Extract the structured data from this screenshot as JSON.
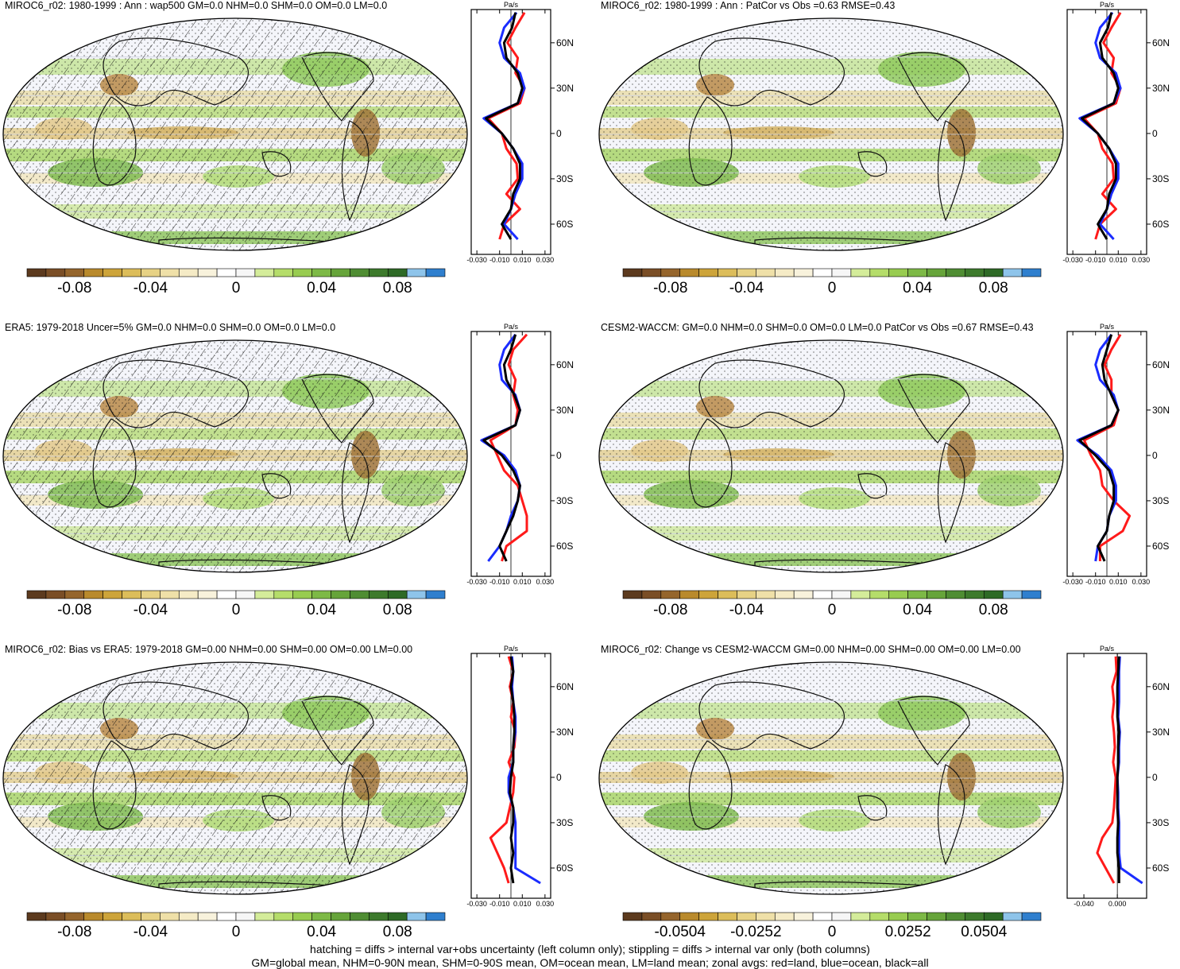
{
  "panels": [
    {
      "title": "MIROC6_r02: 1980-1999 : Ann : wap500 GM=0.0 NHM=0.0 SHM=0.0 OM=0.0 LM=0.0",
      "zonal_unit": "Pa/s",
      "zonal_xticks": [
        "-0.030",
        "-0.010",
        "0.010",
        "0.030"
      ],
      "lat_ticks": [
        "60N",
        "30N",
        "0",
        "30S",
        "60S"
      ],
      "colorbar_labels": [
        "-0.08",
        "-0.04",
        "0",
        "0.04",
        "0.08"
      ],
      "hatching": true
    },
    {
      "title": "MIROC6_r02: 1980-1999 : Ann : PatCor vs Obs =0.63 RMSE=0.43",
      "zonal_unit": "Pa/s",
      "zonal_xticks": [
        "-0.030",
        "-0.010",
        "0.010",
        "0.030"
      ],
      "lat_ticks": [
        "60N",
        "30N",
        "0",
        "30S",
        "60S"
      ],
      "colorbar_labels": [
        "-0.08",
        "-0.04",
        "0",
        "0.04",
        "0.08"
      ],
      "hatching": false
    },
    {
      "title": "ERA5: 1979-2018 Uncer=5% GM=0.0 NHM=0.0 SHM=0.0 OM=0.0 LM=0.0",
      "zonal_unit": "Pa/s",
      "zonal_xticks": [
        "-0.030",
        "-0.010",
        "0.010",
        "0.030"
      ],
      "lat_ticks": [
        "60N",
        "30N",
        "0",
        "30S",
        "60S"
      ],
      "colorbar_labels": [
        "-0.08",
        "-0.04",
        "0",
        "0.04",
        "0.08"
      ],
      "hatching": true
    },
    {
      "title": "CESM2-WACCM: GM=0.0 NHM=0.0 SHM=0.0 OM=0.0 LM=0.0 PatCor vs Obs =0.67 RMSE=0.43",
      "zonal_unit": "Pa/s",
      "zonal_xticks": [
        "-0.030",
        "-0.010",
        "0.010",
        "0.030"
      ],
      "lat_ticks": [
        "60N",
        "30N",
        "0",
        "30S",
        "60S"
      ],
      "colorbar_labels": [
        "-0.08",
        "-0.04",
        "0",
        "0.04",
        "0.08"
      ],
      "hatching": false
    },
    {
      "title": "MIROC6_r02: Bias vs ERA5: 1979-2018 GM=0.00 NHM=0.00 SHM=0.00 OM=0.00 LM=0.00",
      "zonal_unit": "Pa/s",
      "zonal_xticks": [
        "-0.030",
        "-0.010",
        "0.010",
        "0.030"
      ],
      "lat_ticks": [
        "60N",
        "30N",
        "0",
        "30S",
        "60S"
      ],
      "colorbar_labels": [
        "-0.08",
        "-0.04",
        "0",
        "0.04",
        "0.08"
      ],
      "hatching": true
    },
    {
      "title": "MIROC6_r02: Change vs CESM2-WACCM GM=0.00 NHM=0.00 SHM=0.00 OM=0.00 LM=0.00",
      "zonal_unit": "Pa/s",
      "zonal_xticks": [
        "-0.040",
        "0.000"
      ],
      "lat_ticks": [
        "60N",
        "30N",
        "0",
        "30S",
        "60S"
      ],
      "colorbar_labels": [
        "-0.0504",
        "-0.0252",
        "0",
        "0.0252",
        "0.0504"
      ],
      "hatching": false
    }
  ],
  "colorbar_colors": [
    "#5c3a1e",
    "#7a4e26",
    "#95652c",
    "#b98a2c",
    "#cda43a",
    "#dcbd5a",
    "#e7d285",
    "#efe0a8",
    "#f5ebc6",
    "#f8f2dc",
    "#ffffff",
    "#f6f6f6",
    "#d4ec9a",
    "#b5dd6a",
    "#98cc50",
    "#7db946",
    "#66a43a",
    "#4f8d33",
    "#3d7a2c",
    "#2e6a26",
    "#8ec4ea",
    "#2f7fce"
  ],
  "footer_lines": [
    "hatching = diffs > internal var+obs uncertainty (left column only); stippling = diffs > internal var only (both columns)",
    "GM=global mean, NHM=0-90N mean, SHM=0-90S mean, OM=ocean mean, LM=land mean; zonal avgs: red=land, blue=ocean, black=all"
  ],
  "chart_data": [
    {
      "type": "heatmap",
      "title": "MIROC6_r02: 1980-1999 : Ann : wap500 GM=0.0 NHM=0.0 SHM=0.0 OM=0.0 LM=0.0",
      "colorbar_range": [
        -0.1,
        0.1
      ],
      "zonal_mean": {
        "lat": [
          80,
          70,
          60,
          50,
          40,
          30,
          20,
          10,
          0,
          -10,
          -20,
          -30,
          -40,
          -50,
          -60,
          -70
        ],
        "series": [
          {
            "name": "red=land",
            "values": [
              0.012,
              0.004,
              -0.003,
              0.006,
              0.004,
              0.012,
              0.008,
              -0.02,
              -0.008,
              -0.004,
              0.005,
              0.006,
              -0.004,
              0.008,
              -0.006,
              -0.01
            ]
          },
          {
            "name": "blue=ocean",
            "values": [
              0.005,
              -0.006,
              -0.01,
              -0.006,
              0.008,
              0.012,
              0.006,
              -0.024,
              -0.008,
              0.002,
              0.01,
              0.01,
              0.004,
              0,
              -0.006,
              0.006
            ]
          },
          {
            "name": "black=all",
            "values": [
              0.004,
              0.001,
              -0.006,
              -0.004,
              0.006,
              0.01,
              0.006,
              -0.022,
              -0.008,
              0.002,
              0.008,
              0.008,
              0.002,
              0,
              -0.008,
              0
            ]
          }
        ]
      }
    },
    {
      "type": "heatmap",
      "title": "MIROC6_r02: 1980-1999 : Ann : PatCor vs Obs =0.63 RMSE=0.43",
      "colorbar_range": [
        -0.1,
        0.1
      ],
      "zonal_mean": {
        "lat": [
          80,
          70,
          60,
          50,
          40,
          30,
          20,
          10,
          0,
          -10,
          -20,
          -30,
          -40,
          -50,
          -60,
          -70
        ],
        "series": [
          {
            "name": "red=land",
            "values": [
              0.012,
              0.004,
              -0.003,
              0.006,
              0.004,
              0.012,
              0.008,
              -0.02,
              -0.008,
              -0.004,
              0.005,
              0.006,
              -0.004,
              0.008,
              -0.006,
              -0.01
            ]
          },
          {
            "name": "blue=ocean",
            "values": [
              0.005,
              -0.006,
              -0.01,
              -0.006,
              0.008,
              0.012,
              0.006,
              -0.024,
              -0.008,
              0.002,
              0.01,
              0.01,
              0.004,
              0,
              -0.006,
              0.006
            ]
          },
          {
            "name": "black=all",
            "values": [
              0.004,
              0.001,
              -0.006,
              -0.004,
              0.006,
              0.01,
              0.006,
              -0.022,
              -0.008,
              0.002,
              0.008,
              0.008,
              0.002,
              0,
              -0.008,
              0
            ]
          }
        ]
      }
    },
    {
      "type": "heatmap",
      "title": "ERA5: 1979-2018 Uncer=5% GM=0.0 NHM=0.0 SHM=0.0 OM=0.0 LM=0.0",
      "colorbar_range": [
        -0.1,
        0.1
      ],
      "zonal_mean": {
        "lat": [
          80,
          70,
          60,
          50,
          40,
          30,
          20,
          10,
          0,
          -10,
          -20,
          -30,
          -40,
          -50,
          -60,
          -70
        ],
        "series": [
          {
            "name": "red=land",
            "values": [
              0.014,
              0.002,
              -0.002,
              0.004,
              0.002,
              0.006,
              0.004,
              -0.018,
              -0.012,
              -0.006,
              0.006,
              0.01,
              0.014,
              0.014,
              -0.004,
              -0.008
            ]
          },
          {
            "name": "blue=ocean",
            "values": [
              0.004,
              -0.006,
              -0.01,
              -0.008,
              0.004,
              0.008,
              0.004,
              -0.026,
              -0.006,
              0.004,
              0.008,
              0.006,
              0,
              -0.004,
              -0.01,
              -0.02
            ]
          },
          {
            "name": "black=all",
            "values": [
              0.004,
              0,
              -0.006,
              -0.004,
              0.003,
              0.008,
              0.004,
              -0.024,
              -0.008,
              0.002,
              0.008,
              0.006,
              0.002,
              -0.004,
              -0.01,
              -0.004
            ]
          }
        ]
      }
    },
    {
      "type": "heatmap",
      "title": "CESM2-WACCM: GM=0.0 NHM=0.0 SHM=0.0 OM=0.0 LM=0.0 PatCor vs Obs =0.67 RMSE=0.43",
      "colorbar_range": [
        -0.1,
        0.1
      ],
      "zonal_mean": {
        "lat": [
          80,
          70,
          60,
          50,
          40,
          30,
          20,
          10,
          0,
          -10,
          -20,
          -30,
          -40,
          -50,
          -60,
          -70
        ],
        "series": [
          {
            "name": "red=land",
            "values": [
              0.012,
              0.004,
              -0.002,
              0.004,
              0.004,
              0.01,
              0.006,
              -0.02,
              -0.014,
              -0.006,
              -0.004,
              0.006,
              0.02,
              0.014,
              -0.006,
              -0.006
            ]
          },
          {
            "name": "blue=ocean",
            "values": [
              0.004,
              -0.006,
              -0.01,
              -0.006,
              0.006,
              0.01,
              0.004,
              -0.026,
              -0.008,
              0.004,
              0.008,
              0.008,
              0.002,
              0,
              -0.008,
              -0.01
            ]
          },
          {
            "name": "black=all",
            "values": [
              0.004,
              0,
              -0.004,
              -0.002,
              0.004,
              0.01,
              0.004,
              -0.024,
              -0.01,
              0.002,
              0.006,
              0.006,
              0.002,
              0,
              -0.008,
              -0.002
            ]
          }
        ]
      }
    },
    {
      "type": "heatmap",
      "title": "MIROC6_r02: Bias vs ERA5: 1979-2018 GM=0.00 NHM=0.00 SHM=0.00 OM=0.00 LM=0.00",
      "colorbar_range": [
        -0.1,
        0.1
      ],
      "zonal_mean": {
        "lat": [
          80,
          70,
          60,
          50,
          40,
          30,
          20,
          10,
          0,
          -10,
          -20,
          -30,
          -40,
          -50,
          -60,
          -70
        ],
        "series": [
          {
            "name": "red=land",
            "values": [
              -0.002,
              0.002,
              -0.001,
              0.002,
              0,
              0.004,
              0.003,
              -0.002,
              0.003,
              0.002,
              -0.001,
              -0.004,
              -0.018,
              -0.012,
              -0.006,
              -0.002
            ]
          },
          {
            "name": "blue=ocean",
            "values": [
              0.001,
              0.002,
              0.001,
              0.002,
              0.004,
              0.004,
              0.002,
              0.002,
              -0.002,
              -0.002,
              0.002,
              0.004,
              0.004,
              0.004,
              0.004,
              0.026
            ]
          },
          {
            "name": "black=all",
            "values": [
              0,
              0.002,
              0,
              0.002,
              0.003,
              0.003,
              0.002,
              0.002,
              0,
              -0.001,
              0.002,
              0.002,
              0,
              0.002,
              0,
              0.002
            ]
          }
        ]
      }
    },
    {
      "type": "heatmap",
      "title": "MIROC6_r02: Change vs CESM2-WACCM GM=0.00 NHM=0.00 SHM=0.00 OM=0.00 LM=0.00",
      "colorbar_range": [
        -0.063,
        0.063
      ],
      "zonal_mean": {
        "lat": [
          80,
          70,
          60,
          50,
          40,
          30,
          20,
          10,
          0,
          -10,
          -20,
          -30,
          -40,
          -50,
          -60,
          -70
        ],
        "series": [
          {
            "name": "red=land",
            "values": [
              -0.002,
              -0.001,
              -0.006,
              -0.004,
              -0.006,
              -0.004,
              -0.003,
              -0.005,
              -0.002,
              -0.003,
              -0.004,
              -0.006,
              -0.018,
              -0.024,
              -0.014,
              -0.004
            ]
          },
          {
            "name": "blue=ocean",
            "values": [
              0.003,
              0.002,
              0.002,
              0.002,
              0.001,
              0.003,
              0.002,
              0.002,
              0,
              0.001,
              0.001,
              0.002,
              0.002,
              0.002,
              0.004,
              0.03
            ]
          },
          {
            "name": "black=all",
            "values": [
              0.002,
              0.001,
              0,
              0,
              0,
              0.002,
              0.001,
              0.001,
              0,
              0,
              0,
              0.001,
              0,
              0,
              0.002,
              0.002
            ]
          }
        ]
      }
    }
  ]
}
